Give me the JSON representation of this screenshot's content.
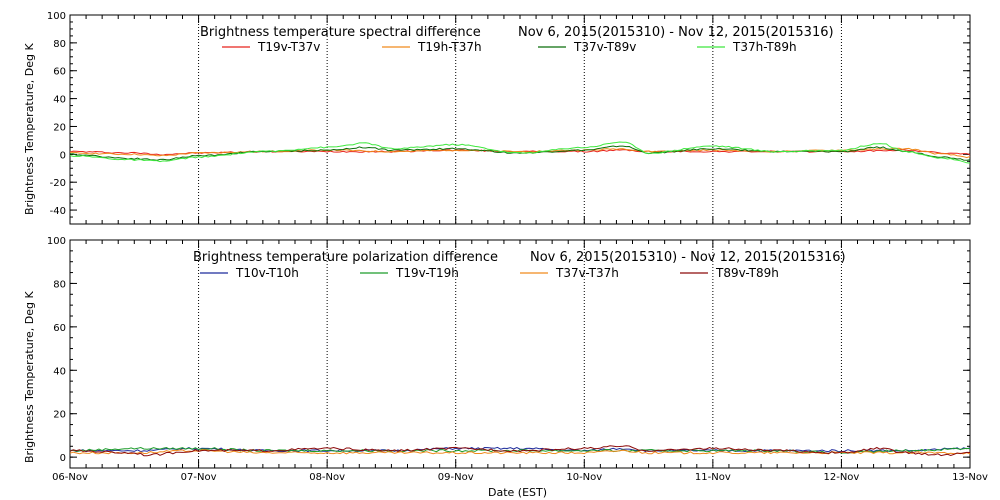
{
  "chart_data": [
    {
      "type": "line",
      "title": "Brightness temperature spectral difference",
      "date_range": "Nov  6, 2015(2015310) - Nov 12, 2015(2015316)",
      "ylabel": "Brightness Temperature, Deg K",
      "ylim": [
        -50,
        100
      ],
      "yticks": [
        -40,
        -20,
        0,
        20,
        40,
        60,
        80,
        100
      ],
      "xlim": [
        "2015-11-06",
        "2015-11-13"
      ],
      "grid": "vertical dotted at each day",
      "legend_position": "top",
      "series": [
        {
          "name": "T19v-T37v",
          "color": "#e8231c",
          "x": [
            0,
            0.5,
            0.7,
            1,
            1.5,
            2,
            2.5,
            3,
            3.5,
            4,
            4.3,
            4.5,
            5,
            5.5,
            6,
            6.5,
            6.8,
            7
          ],
          "values": [
            2,
            1,
            0,
            1,
            2,
            2,
            2,
            3,
            2,
            2,
            3,
            2,
            2,
            2,
            2,
            3,
            1,
            0
          ]
        },
        {
          "name": "T19h-T37h",
          "color": "#f08a1c",
          "x": [
            0,
            0.5,
            0.7,
            1,
            1.5,
            2,
            2.5,
            3,
            3.5,
            4,
            4.3,
            4.5,
            5,
            5.5,
            6,
            6.5,
            6.8,
            7
          ],
          "values": [
            1,
            0,
            -1,
            1,
            2,
            3,
            2,
            3,
            2,
            3,
            4,
            2,
            3,
            2,
            3,
            4,
            0,
            -2
          ]
        },
        {
          "name": "T37v-T89v",
          "color": "#0a6e0a",
          "x": [
            0,
            0.5,
            0.7,
            1,
            1.5,
            2,
            2.3,
            2.5,
            3,
            3.5,
            4,
            4.3,
            4.5,
            5,
            5.5,
            6,
            6.3,
            6.5,
            6.8,
            7
          ],
          "values": [
            0,
            -3,
            -4,
            -1,
            2,
            3,
            5,
            3,
            4,
            1,
            3,
            6,
            1,
            4,
            2,
            2,
            5,
            2,
            -2,
            -4
          ]
        },
        {
          "name": "T37h-T89h",
          "color": "#3ee83e",
          "x": [
            0,
            0.5,
            0.7,
            1,
            1.5,
            2,
            2.3,
            2.5,
            3,
            3.5,
            4,
            4.3,
            4.5,
            5,
            5.5,
            6,
            6.3,
            6.5,
            6.8,
            7
          ],
          "values": [
            -1,
            -4,
            -5,
            -2,
            2,
            5,
            8,
            4,
            7,
            1,
            5,
            9,
            1,
            6,
            2,
            3,
            8,
            2,
            -3,
            -6
          ]
        }
      ]
    },
    {
      "type": "line",
      "title": "Brightness temperature polarization difference",
      "date_range": "Nov  6, 2015(2015310) - Nov 12, 2015(2015316)",
      "xlabel": "Date (EST)",
      "ylabel": "Brightness Temperature, Deg K",
      "ylim": [
        -5,
        100
      ],
      "yticks": [
        0,
        20,
        40,
        60,
        80,
        100
      ],
      "x_tick_labels": [
        "06-Nov",
        "07-Nov",
        "08-Nov",
        "09-Nov",
        "10-Nov",
        "11-Nov",
        "12-Nov",
        "13-Nov"
      ],
      "xlim": [
        "2015-11-06",
        "2015-11-13"
      ],
      "grid": "vertical dotted at each day",
      "legend_position": "top",
      "series": [
        {
          "name": "T10v-T10h",
          "color": "#1c2a9c",
          "x": [
            0,
            0.5,
            1,
            1.5,
            2,
            2.5,
            3,
            3.5,
            4,
            4.3,
            4.5,
            5,
            5.5,
            6,
            6.5,
            7
          ],
          "values": [
            3,
            3,
            4,
            3,
            3,
            3,
            4,
            4,
            3,
            4,
            3,
            3,
            3,
            3,
            3,
            4
          ]
        },
        {
          "name": "T19v-T19h",
          "color": "#1c9c2a",
          "x": [
            0,
            0.5,
            1,
            1.5,
            2,
            2.5,
            3,
            3.5,
            4,
            4.3,
            4.5,
            5,
            5.5,
            6,
            6.5,
            7
          ],
          "values": [
            3,
            4,
            4,
            3,
            3,
            3,
            3,
            3,
            3,
            3,
            3,
            3,
            3,
            2,
            3,
            4
          ]
        },
        {
          "name": "T37v-T37h",
          "color": "#f08a1c",
          "x": [
            0,
            0.5,
            1,
            1.5,
            2,
            2.5,
            3,
            3.5,
            4,
            4.3,
            4.5,
            5,
            5.5,
            6,
            6.5,
            7
          ],
          "values": [
            2,
            2,
            3,
            2,
            2,
            2,
            2,
            2,
            2,
            3,
            2,
            2,
            2,
            2,
            2,
            2
          ]
        },
        {
          "name": "T89v-T89h",
          "color": "#8c0a0a",
          "x": [
            0,
            0.5,
            0.6,
            1,
            1.5,
            2,
            2.5,
            3,
            3.5,
            4,
            4.3,
            4.5,
            5,
            5.5,
            6,
            6.3,
            6.5,
            6.8,
            7
          ],
          "values": [
            3,
            2,
            1,
            3,
            3,
            4,
            3,
            4,
            3,
            4,
            5,
            3,
            4,
            3,
            2,
            4,
            2,
            1,
            2
          ]
        }
      ]
    }
  ]
}
